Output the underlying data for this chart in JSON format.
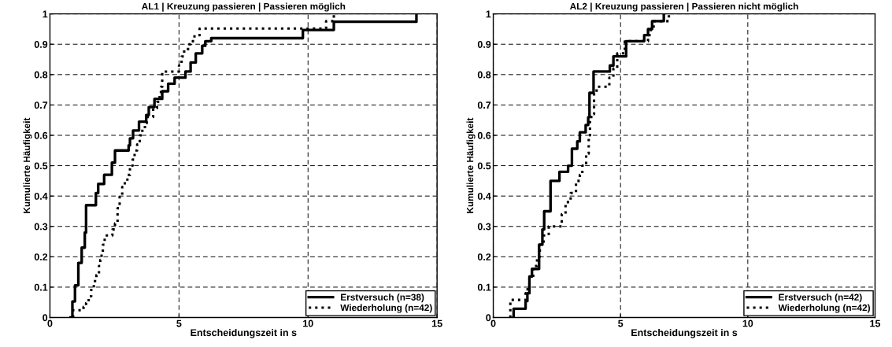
{
  "chart_data": [
    {
      "type": "step",
      "title": "AL1 | Kreuzung passieren | Passieren möglich",
      "xlabel": "Entscheidungszeit in s",
      "ylabel": "Kumulierte Häufigkeit",
      "xlim": [
        0,
        15
      ],
      "ylim": [
        0,
        1
      ],
      "xticks": [
        0,
        5,
        10,
        15
      ],
      "yticks": [
        0,
        0.1,
        0.2,
        0.3,
        0.4,
        0.5,
        0.6,
        0.7,
        0.8,
        0.9,
        1
      ],
      "grid": true,
      "legend": "bottom right",
      "series": [
        {
          "name": "Erstversuch (n=38)",
          "color": "#000000",
          "line_style": "solid",
          "x": [
            0.8,
            0.87,
            0.97,
            1.1,
            1.23,
            1.35,
            1.4,
            1.78,
            1.87,
            2.1,
            2.4,
            2.52,
            3.05,
            3.1,
            3.22,
            3.45,
            3.73,
            3.83,
            4.05,
            4.35,
            4.58,
            4.83,
            5.25,
            5.45,
            5.65,
            5.9,
            6.02,
            6.25,
            9.8,
            11.0,
            14.2
          ],
          "values": [
            0,
            0.053,
            0.106,
            0.18,
            0.23,
            0.28,
            0.37,
            0.41,
            0.44,
            0.47,
            0.51,
            0.55,
            0.567,
            0.59,
            0.616,
            0.645,
            0.667,
            0.693,
            0.72,
            0.745,
            0.77,
            0.79,
            0.81,
            0.84,
            0.87,
            0.895,
            0.91,
            0.92,
            0.947,
            0.974,
            1.0
          ]
        },
        {
          "name": "Wiederholung (n=42)",
          "color": "#000000",
          "line_style": "dotted",
          "x": [
            0.89,
            0.9,
            1.3,
            1.4,
            1.5,
            1.6,
            1.7,
            1.8,
            1.9,
            1.95,
            2.0,
            2.05,
            2.12,
            2.42,
            2.52,
            2.62,
            2.7,
            2.8,
            2.9,
            3.0,
            3.1,
            3.2,
            3.28,
            3.38,
            3.48,
            3.58,
            3.68,
            3.75,
            4.0,
            4.15,
            4.25,
            4.3,
            4.35,
            5.0,
            5.1,
            5.2,
            5.35,
            5.45,
            5.6,
            5.8,
            10.7,
            11.0
          ],
          "values": [
            0,
            0.024,
            0.035,
            0.048,
            0.07,
            0.095,
            0.12,
            0.14,
            0.17,
            0.19,
            0.21,
            0.24,
            0.27,
            0.29,
            0.31,
            0.36,
            0.4,
            0.43,
            0.45,
            0.47,
            0.5,
            0.52,
            0.55,
            0.57,
            0.6,
            0.62,
            0.64,
            0.66,
            0.69,
            0.71,
            0.74,
            0.76,
            0.81,
            0.83,
            0.86,
            0.88,
            0.9,
            0.91,
            0.93,
            0.952,
            0.976,
            1.0
          ]
        }
      ]
    },
    {
      "type": "step",
      "title": "AL2 | Kreuzung passieren | Passieren nicht möglich",
      "xlabel": "Entscheidungszeit in s",
      "ylabel": "Kumulierte Häufigkeit",
      "xlim": [
        0,
        15
      ],
      "ylim": [
        0,
        1
      ],
      "xticks": [
        0,
        5,
        10,
        15
      ],
      "yticks": [
        0,
        0.1,
        0.2,
        0.3,
        0.4,
        0.5,
        0.6,
        0.7,
        0.8,
        0.9,
        1
      ],
      "grid": true,
      "legend": "bottom right",
      "series": [
        {
          "name": "Erstversuch (n=42)",
          "color": "#000000",
          "line_style": "solid",
          "x": [
            0.79,
            0.8,
            1.27,
            1.34,
            1.42,
            1.52,
            1.8,
            1.93,
            2.0,
            2.25,
            2.6,
            2.94,
            3.09,
            3.3,
            3.4,
            3.63,
            3.73,
            3.78,
            3.94,
            4.58,
            4.72,
            5.22,
            5.93,
            6.08,
            6.24,
            6.7
          ],
          "values": [
            0,
            0.029,
            0.054,
            0.08,
            0.135,
            0.16,
            0.24,
            0.29,
            0.35,
            0.45,
            0.48,
            0.5,
            0.556,
            0.58,
            0.61,
            0.634,
            0.66,
            0.74,
            0.81,
            0.83,
            0.86,
            0.91,
            0.93,
            0.95,
            0.976,
            1.0
          ]
        },
        {
          "name": "Wiederholung (n=42)",
          "color": "#000000",
          "line_style": "dotted",
          "x": [
            0.66,
            0.67,
            1.27,
            1.35,
            1.42,
            1.57,
            1.72,
            1.83,
            1.98,
            2.18,
            2.69,
            2.84,
            3.04,
            3.25,
            3.4,
            3.5,
            3.65,
            3.75,
            3.8,
            3.85,
            3.96,
            4.06,
            4.56,
            4.72,
            4.87,
            5.17,
            5.27,
            6.08,
            6.19,
            6.3,
            6.9
          ],
          "values": [
            0,
            0.058,
            0.08,
            0.1,
            0.13,
            0.17,
            0.2,
            0.24,
            0.27,
            0.3,
            0.34,
            0.38,
            0.41,
            0.45,
            0.47,
            0.5,
            0.54,
            0.6,
            0.65,
            0.67,
            0.74,
            0.76,
            0.79,
            0.82,
            0.87,
            0.91,
            0.91,
            0.93,
            0.95,
            0.976,
            1.0
          ]
        }
      ]
    }
  ]
}
